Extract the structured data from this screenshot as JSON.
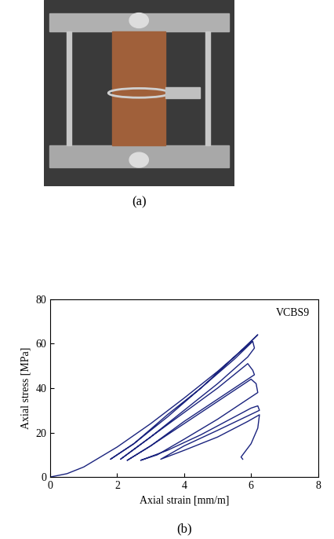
{
  "chart_data": {
    "type": "line",
    "x_label": "Axial strain [mm/m]",
    "y_label": "Axial stress [MPa]",
    "annotations": [
      "VCBS9"
    ],
    "xlim": [
      0,
      8
    ],
    "xticks": [
      0,
      2,
      4,
      6,
      8
    ],
    "ylim": [
      0,
      80
    ],
    "yticks": [
      0,
      20,
      40,
      60,
      80
    ],
    "grid": false,
    "series": [
      {
        "name": "VCBS9",
        "color": "#1a237e",
        "x": [
          0,
          0.5,
          1.0,
          1.5,
          2.0,
          3.0,
          4.0,
          5.0,
          5.8,
          6.2,
          5.5,
          4.5,
          3.5,
          2.5,
          1.8,
          2.5,
          3.5,
          4.5,
          5.5,
          6.05,
          6.1,
          5.9,
          5.0,
          4.0,
          3.0,
          2.1,
          3.0,
          4.0,
          5.0,
          5.9,
          6.05,
          6.1,
          5.0,
          4.0,
          3.0,
          2.3,
          3.0,
          4.0,
          5.0,
          6.0,
          6.15,
          6.2,
          5.0,
          4.0,
          3.2,
          2.7,
          3.5,
          4.5,
          5.5,
          6.0,
          6.2,
          6.25,
          5.0,
          4.0,
          3.3,
          4.0,
          5.0,
          5.9,
          6.25,
          6.2,
          6.0,
          5.8,
          5.7,
          5.75
        ],
        "values": [
          0,
          1.5,
          4.5,
          9,
          13.5,
          24,
          35.5,
          47.5,
          58,
          64,
          54,
          40,
          27,
          15,
          8,
          15,
          28,
          40,
          53,
          61,
          58,
          54,
          42,
          30,
          18,
          8,
          18,
          29,
          40,
          51,
          48,
          46,
          35,
          25,
          14,
          7.5,
          14,
          24,
          34,
          44,
          42,
          38,
          26,
          17,
          10,
          7.5,
          12,
          19,
          27,
          31,
          32,
          30,
          21,
          14,
          8,
          12,
          18,
          25,
          28,
          22,
          15,
          11,
          9,
          8
        ]
      }
    ]
  },
  "figure": {
    "panel_labels": [
      "(a)",
      "(b)"
    ]
  }
}
